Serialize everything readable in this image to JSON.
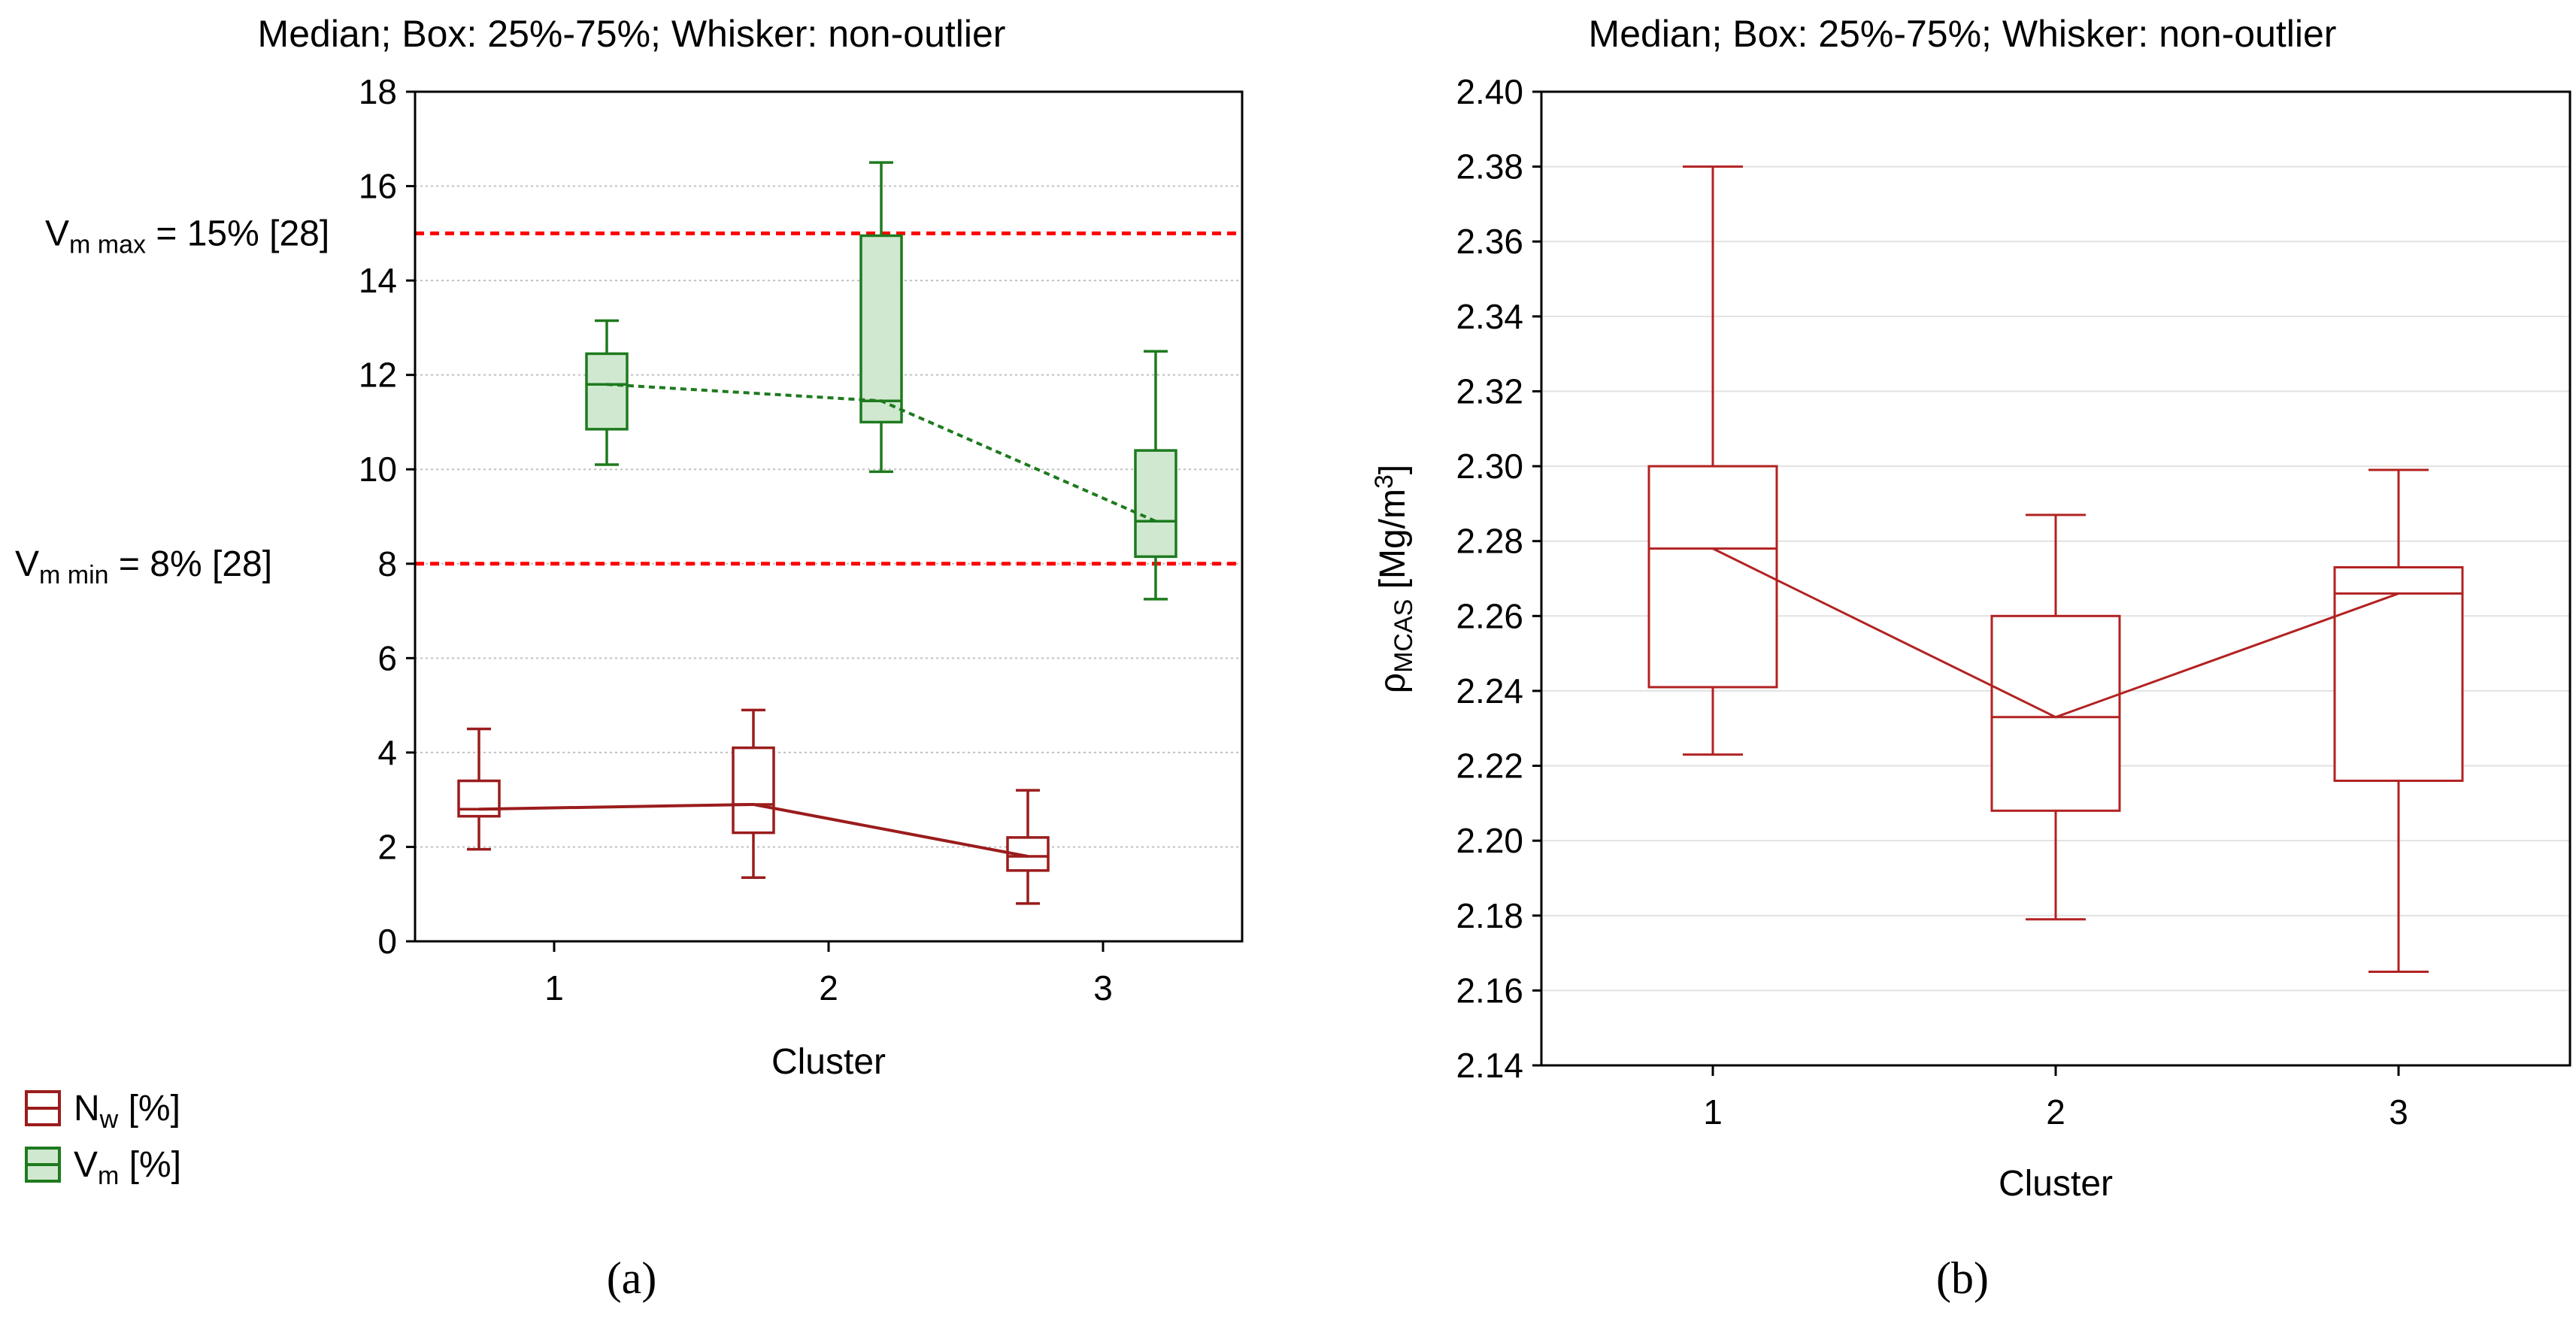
{
  "chart_data": [
    {
      "panel": "(a)",
      "type": "box",
      "title": "Median; Box: 25%-75%; Whisker: non-outlier",
      "xlabel": "Cluster",
      "ylabel": "",
      "categories": [
        "1",
        "2",
        "3"
      ],
      "ylim": [
        0,
        18
      ],
      "yticks": [
        0,
        2,
        4,
        6,
        8,
        10,
        12,
        14,
        16,
        18
      ],
      "series": [
        {
          "name": "Nw [%]",
          "legend_main": "N",
          "legend_sub": "w",
          "legend_rest": " [%]",
          "color": "#9b1c1c",
          "fill": "#ffffff",
          "median_line": "solid",
          "boxes": [
            {
              "category": "1",
              "min": 1.95,
              "q1": 2.65,
              "median": 2.8,
              "q3": 3.4,
              "max": 4.5
            },
            {
              "category": "2",
              "min": 1.35,
              "q1": 2.3,
              "median": 2.9,
              "q3": 4.1,
              "max": 4.9
            },
            {
              "category": "3",
              "min": 0.8,
              "q1": 1.5,
              "median": 1.8,
              "q3": 2.2,
              "max": 3.2
            }
          ]
        },
        {
          "name": "Vm [%]",
          "legend_main": "V",
          "legend_sub": "m",
          "legend_rest": " [%]",
          "color": "#1e7a1e",
          "fill": "#cfe8cf",
          "median_line": "dotted",
          "boxes": [
            {
              "category": "1",
              "min": 10.1,
              "q1": 10.85,
              "median": 11.8,
              "q3": 12.45,
              "max": 13.15
            },
            {
              "category": "2",
              "min": 9.95,
              "q1": 11.0,
              "median": 11.45,
              "q3": 14.95,
              "max": 16.5
            },
            {
              "category": "3",
              "min": 7.25,
              "q1": 8.15,
              "median": 8.9,
              "q3": 10.4,
              "max": 12.5
            }
          ]
        }
      ],
      "reference_lines": [
        {
          "value": 15,
          "main": "V",
          "sub": "m max",
          "rest": " = 15% [28]",
          "color": "#ff0000"
        },
        {
          "value": 8,
          "main": "V",
          "sub": "m min",
          "rest": " = 8% [28]",
          "color": "#ff0000"
        }
      ],
      "legend": "bottom-left"
    },
    {
      "panel": "(b)",
      "type": "box",
      "title": "Median; Box: 25%-75%; Whisker: non-outlier",
      "xlabel": "Cluster",
      "ylabel_main": "ρ",
      "ylabel_sub": "MCAS",
      "ylabel_rest": " [Mg/m",
      "ylabel_sup": "3",
      "ylabel_end": "]",
      "categories": [
        "1",
        "2",
        "3"
      ],
      "ylim": [
        2.14,
        2.4
      ],
      "yticks": [
        "2.14",
        "2.16",
        "2.18",
        "2.20",
        "2.22",
        "2.24",
        "2.26",
        "2.28",
        "2.30",
        "2.32",
        "2.34",
        "2.36",
        "2.38",
        "2.40"
      ],
      "series": [
        {
          "name": "ρMCAS [Mg/m3]",
          "color": "#b22222",
          "fill": "#ffffff",
          "boxes": [
            {
              "category": "1",
              "min": 2.223,
              "q1": 2.241,
              "median": 2.278,
              "q3": 2.3,
              "max": 2.38
            },
            {
              "category": "2",
              "min": 2.179,
              "q1": 2.208,
              "median": 2.233,
              "q3": 2.26,
              "max": 2.287
            },
            {
              "category": "3",
              "min": 2.165,
              "q1": 2.216,
              "median": 2.266,
              "q3": 2.273,
              "max": 2.299
            }
          ]
        }
      ]
    }
  ],
  "captions": {
    "a": "(a)",
    "b": "(b)"
  }
}
